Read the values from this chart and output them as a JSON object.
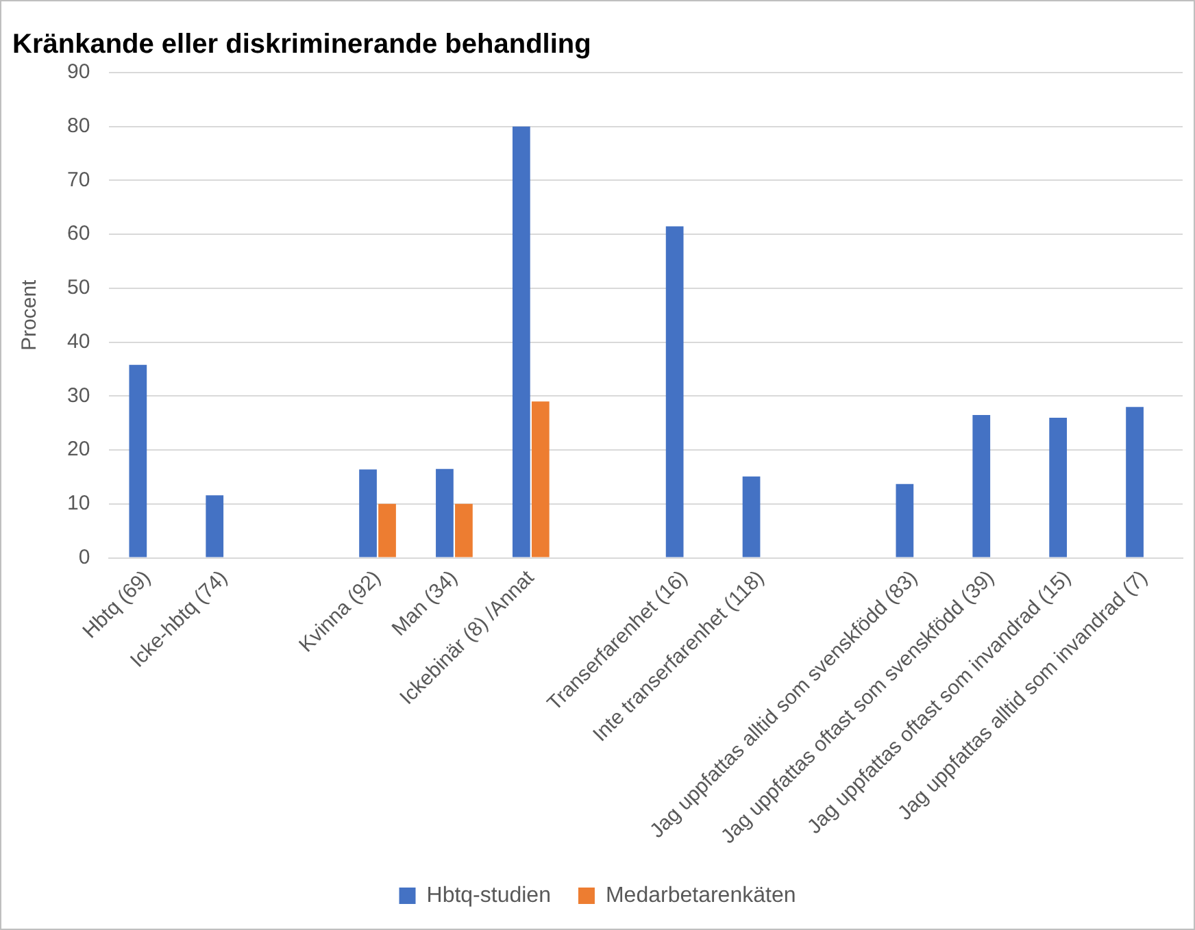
{
  "chart_data": {
    "type": "bar",
    "title": "Kränkande eller diskriminerande behandling",
    "ylabel": "Procent",
    "categories": [
      "Hbtq (69)",
      "Icke-hbtq (74)",
      null,
      "Kvinna (92)",
      "Man (34)",
      "Ickebinär (8) /Annat",
      null,
      "Transerfarenhet (16)",
      "Inte transerfarenhet (118)",
      null,
      "Jag uppfattas alltid som svenskfödd (83)",
      "Jag uppfattas oftast som svenskfödd (39)",
      "Jag uppfattas oftast som invandrad (15)",
      "Jag uppfattas alltid som invandrad (7)"
    ],
    "series": [
      {
        "name": "Hbtq-studien",
        "color": "#4472c4",
        "values": [
          35.8,
          11.6,
          null,
          16.4,
          16.5,
          80,
          null,
          61.5,
          15.1,
          null,
          13.7,
          26.5,
          26,
          28
        ]
      },
      {
        "name": "Medarbetarenkäten",
        "color": "#ed7d31",
        "values": [
          null,
          null,
          null,
          10,
          10,
          29,
          null,
          null,
          null,
          null,
          null,
          null,
          null,
          null
        ]
      }
    ],
    "ylim": [
      0,
      90
    ],
    "yticks": [
      0,
      10,
      20,
      30,
      40,
      50,
      60,
      70,
      80,
      90
    ],
    "grid": "y",
    "legend": "bottom"
  }
}
